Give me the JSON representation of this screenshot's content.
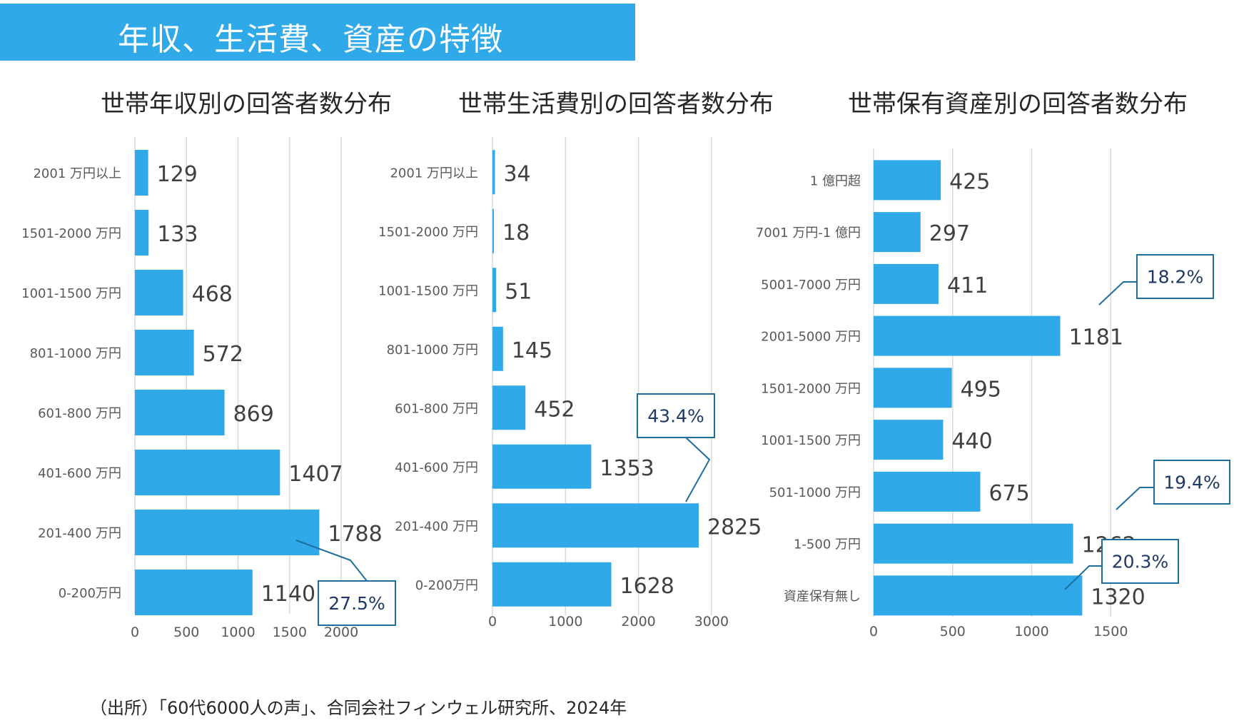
{
  "header": {
    "title": "年収、生活費、資産の特徴"
  },
  "source": "（出所）「60代6000人の声」、合同会社フィンウェル研究所、2024年",
  "colors": {
    "bar": "#30a9e8",
    "gridline": "#d9d9d9",
    "callout_border": "#1f6d9c",
    "callout_text": "#1f3864",
    "label_text": "#595959",
    "value_text": "#404040"
  },
  "chart_data": [
    {
      "id": "income",
      "type": "bar",
      "orientation": "horizontal",
      "title": "世帯年収別の回答者数分布",
      "categories": [
        "2001 万円以上",
        "1501-2000 万円",
        "1001-1500 万円",
        "801-1000 万円",
        "601-800 万円",
        "401-600 万円",
        "201-400 万円",
        "0-200万円"
      ],
      "values": [
        129,
        133,
        468,
        572,
        869,
        1407,
        1788,
        1140
      ],
      "xlim": [
        0,
        2000
      ],
      "xticks": [
        0,
        500,
        1000,
        1500,
        2000
      ],
      "grid": true,
      "annotations": [
        {
          "text": "27.5%",
          "target": "201-400 万円"
        }
      ]
    },
    {
      "id": "expense",
      "type": "bar",
      "orientation": "horizontal",
      "title": "世帯生活費別の回答者数分布",
      "categories": [
        "2001 万円以上",
        "1501-2000 万円",
        "1001-1500 万円",
        "801-1000 万円",
        "601-800 万円",
        "401-600 万円",
        "201-400 万円",
        "0-200万円"
      ],
      "values": [
        34,
        18,
        51,
        145,
        452,
        1353,
        2825,
        1628
      ],
      "xlim": [
        0,
        3000
      ],
      "xticks": [
        0,
        1000,
        2000,
        3000
      ],
      "grid": true,
      "annotations": [
        {
          "text": "43.4%",
          "target": "201-400 万円"
        }
      ]
    },
    {
      "id": "asset",
      "type": "bar",
      "orientation": "horizontal",
      "title": "世帯保有資産別の回答者数分布",
      "categories": [
        "1 億円超",
        "7001 万円-1 億円",
        "5001-7000 万円",
        "2001-5000 万円",
        "1501-2000 万円",
        "1001-1500 万円",
        "501-1000 万円",
        "1-500 万円",
        "資産保有無し"
      ],
      "values": [
        425,
        297,
        411,
        1181,
        495,
        440,
        675,
        1262,
        1320
      ],
      "xlim": [
        0,
        1500
      ],
      "xticks": [
        0,
        500,
        1000,
        1500
      ],
      "grid": true,
      "annotations": [
        {
          "text": "18.2%",
          "target": "2001-5000 万円"
        },
        {
          "text": "19.4%",
          "target": "1-500 万円"
        },
        {
          "text": "20.3%",
          "target": "資産保有無し"
        }
      ]
    }
  ]
}
